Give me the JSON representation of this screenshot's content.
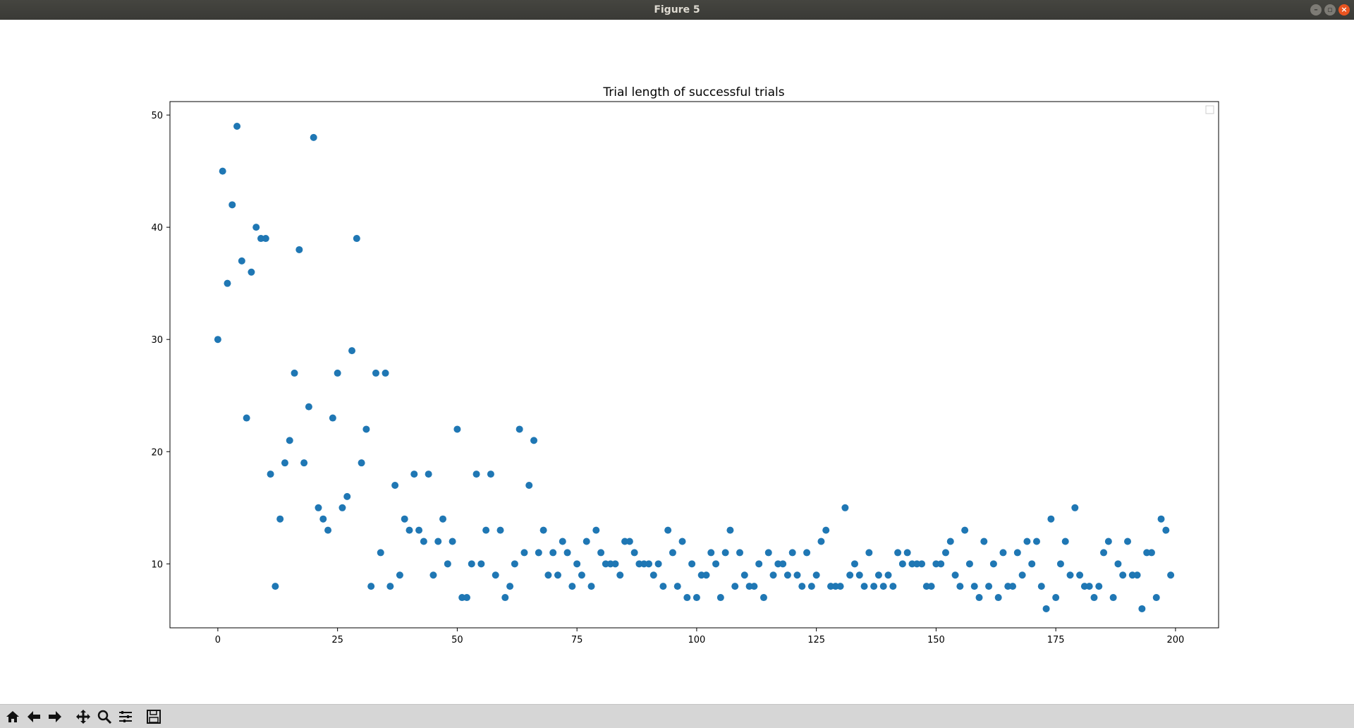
{
  "window": {
    "title": "Figure 5"
  },
  "toolbar": {
    "buttons": [
      {
        "name": "home-icon"
      },
      {
        "name": "back-arrow-icon"
      },
      {
        "name": "forward-arrow-icon"
      },
      {
        "name": "pan-icon"
      },
      {
        "name": "zoom-icon"
      },
      {
        "name": "configure-subplots-icon"
      },
      {
        "name": "save-icon"
      }
    ]
  },
  "chart_data": {
    "type": "scatter",
    "title": "Trial length of successful trials",
    "xlabel": "",
    "ylabel": "",
    "xlim": [
      -10,
      209
    ],
    "ylim": [
      4.3,
      51.2
    ],
    "xticks": [
      0,
      25,
      50,
      75,
      100,
      125,
      150,
      175,
      200
    ],
    "yticks": [
      10,
      20,
      30,
      40,
      50
    ],
    "grid": false,
    "legend": "top-right (empty)",
    "marker_color": "#1f77b4",
    "x": [
      0,
      1,
      2,
      3,
      4,
      5,
      6,
      7,
      8,
      9,
      10,
      11,
      12,
      13,
      14,
      15,
      16,
      17,
      18,
      19,
      20,
      21,
      22,
      23,
      24,
      25,
      26,
      27,
      28,
      29,
      30,
      31,
      32,
      33,
      34,
      35,
      36,
      37,
      38,
      39,
      40,
      41,
      42,
      43,
      44,
      45,
      46,
      47,
      48,
      49,
      50,
      51,
      52,
      53,
      54,
      55,
      56,
      57,
      58,
      59,
      60,
      61,
      62,
      63,
      64,
      65,
      66,
      67,
      68,
      69,
      70,
      71,
      72,
      73,
      74,
      75,
      76,
      77,
      78,
      79,
      80,
      81,
      82,
      83,
      84,
      85,
      86,
      87,
      88,
      89,
      90,
      91,
      92,
      93,
      94,
      95,
      96,
      97,
      98,
      99,
      100,
      101,
      102,
      103,
      104,
      105,
      106,
      107,
      108,
      109,
      110,
      111,
      112,
      113,
      114,
      115,
      116,
      117,
      118,
      119,
      120,
      121,
      122,
      123,
      124,
      125,
      126,
      127,
      128,
      129,
      130,
      131,
      132,
      133,
      134,
      135,
      136,
      137,
      138,
      139,
      140,
      141,
      142,
      143,
      144,
      145,
      146,
      147,
      148,
      149,
      150,
      151,
      152,
      153,
      154,
      155,
      156,
      157,
      158,
      159,
      160,
      161,
      162,
      163,
      164,
      165,
      166,
      167,
      168,
      169,
      170,
      171,
      172,
      173,
      174,
      175,
      176,
      177,
      178,
      179,
      180,
      181,
      182,
      183,
      184,
      185,
      186,
      187,
      188,
      189,
      190,
      191,
      192,
      193,
      194,
      195,
      196,
      197,
      198,
      199
    ],
    "y": [
      30,
      45,
      35,
      42,
      49,
      37,
      23,
      36,
      40,
      39,
      39,
      18,
      8,
      14,
      19,
      21,
      27,
      38,
      19,
      24,
      48,
      15,
      14,
      13,
      23,
      27,
      15,
      16,
      29,
      39,
      19,
      22,
      8,
      27,
      11,
      27,
      8,
      17,
      9,
      14,
      13,
      18,
      13,
      12,
      18,
      9,
      12,
      14,
      10,
      12,
      22,
      7,
      7,
      10,
      18,
      10,
      13,
      18,
      9,
      13,
      7,
      8,
      10,
      22,
      11,
      17,
      21,
      11,
      13,
      9,
      11,
      9,
      12,
      11,
      8,
      10,
      9,
      12,
      8,
      13,
      11,
      10,
      10,
      10,
      9,
      12,
      12,
      11,
      10,
      10,
      10,
      9,
      10,
      8,
      13,
      11,
      8,
      12,
      7,
      10,
      7,
      9,
      9,
      11,
      10,
      7,
      11,
      13,
      8,
      11,
      9,
      8,
      8,
      10,
      7,
      11,
      9,
      10,
      10,
      9,
      11,
      9,
      8,
      11,
      8,
      9,
      12,
      13,
      8,
      8,
      8,
      15,
      9,
      10,
      9,
      8,
      11,
      8,
      9,
      8,
      9,
      8,
      11,
      10,
      11,
      10,
      10,
      10,
      8,
      8,
      10,
      10,
      11,
      12,
      9,
      8,
      13,
      10,
      8,
      7,
      12,
      8,
      10,
      7,
      11,
      8,
      8,
      11,
      9,
      12,
      10,
      12,
      8,
      6,
      14,
      7,
      10,
      12,
      9,
      15,
      9,
      8,
      8,
      7,
      8,
      11,
      12,
      7,
      10,
      9,
      12,
      9,
      9,
      6,
      11,
      11,
      7,
      14,
      13,
      9
    ]
  }
}
